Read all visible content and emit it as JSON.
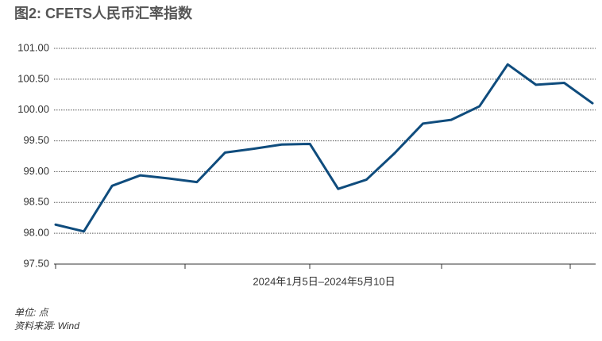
{
  "chart_data": {
    "type": "line",
    "title": "图2: CFETS人民币汇率指数",
    "x_label": "2024年1月5日–2024年5月10日",
    "unit_note": "单位: 点",
    "source_note": "资料来源: Wind",
    "categories": [
      null,
      null,
      null,
      null,
      null,
      null,
      null,
      null,
      null,
      null,
      null,
      null,
      null,
      null,
      null,
      null,
      null,
      null,
      null,
      null
    ],
    "series": [
      {
        "name": "CFETS人民币汇率指数",
        "color": "#0f4c7d",
        "values": [
          98.14,
          98.03,
          98.77,
          98.94,
          98.89,
          98.83,
          99.31,
          99.37,
          99.44,
          99.45,
          98.72,
          98.87,
          99.3,
          99.78,
          99.84,
          100.06,
          100.74,
          100.41,
          100.44,
          100.11
        ]
      }
    ],
    "ylim": [
      97.5,
      101.0
    ],
    "yticks": [
      {
        "value": 97.5,
        "label": "97.50"
      },
      {
        "value": 98.0,
        "label": "98.00"
      },
      {
        "value": 98.5,
        "label": "98.50"
      },
      {
        "value": 99.0,
        "label": "99.00"
      },
      {
        "value": 99.5,
        "label": "99.50"
      },
      {
        "value": 100.0,
        "label": "100.00"
      },
      {
        "value": 100.5,
        "label": "100.50"
      },
      {
        "value": 101.0,
        "label": "101.00"
      }
    ],
    "grid": true
  }
}
